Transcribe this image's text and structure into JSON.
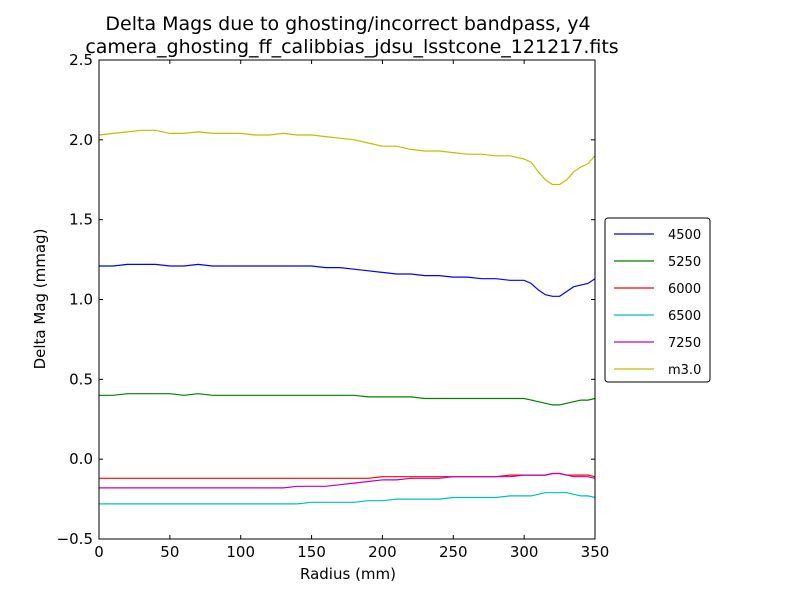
{
  "chart_data": {
    "type": "line",
    "title": "Delta Mags due to ghosting/incorrect bandpass, y4",
    "subtitle": "camera_ghosting_ff_calibbias_jdsu_lsstcone_121217.fits",
    "xlabel": "Radius (mm)",
    "ylabel": "Delta Mag (mmag)",
    "xlim": [
      0,
      350
    ],
    "ylim": [
      -0.5,
      2.5
    ],
    "xticks": [
      0,
      50,
      100,
      150,
      200,
      250,
      300,
      350
    ],
    "yticks": [
      -0.5,
      0.0,
      0.5,
      1.0,
      1.5,
      2.0,
      2.5
    ],
    "xtick_labels": [
      "0",
      "50",
      "100",
      "150",
      "200",
      "250",
      "300",
      "350"
    ],
    "ytick_labels": [
      "−0.5",
      "0.0",
      "0.5",
      "1.0",
      "1.5",
      "2.0",
      "2.5"
    ],
    "grid": false,
    "legend_position": "outside-right",
    "x": [
      0,
      10,
      20,
      30,
      40,
      50,
      60,
      70,
      80,
      90,
      100,
      110,
      120,
      130,
      140,
      150,
      160,
      170,
      180,
      190,
      200,
      210,
      220,
      230,
      240,
      250,
      260,
      270,
      280,
      290,
      300,
      305,
      310,
      315,
      320,
      325,
      330,
      335,
      340,
      345,
      350
    ],
    "series": [
      {
        "name": "4500",
        "color": "#0000ff",
        "values": [
          1.21,
          1.21,
          1.22,
          1.22,
          1.22,
          1.21,
          1.21,
          1.22,
          1.21,
          1.21,
          1.21,
          1.21,
          1.21,
          1.21,
          1.21,
          1.21,
          1.2,
          1.2,
          1.19,
          1.18,
          1.17,
          1.16,
          1.16,
          1.15,
          1.15,
          1.14,
          1.14,
          1.13,
          1.13,
          1.12,
          1.12,
          1.1,
          1.06,
          1.03,
          1.02,
          1.02,
          1.05,
          1.08,
          1.09,
          1.1,
          1.13
        ]
      },
      {
        "name": "5250",
        "color": "#008000",
        "values": [
          0.4,
          0.4,
          0.41,
          0.41,
          0.41,
          0.41,
          0.4,
          0.41,
          0.4,
          0.4,
          0.4,
          0.4,
          0.4,
          0.4,
          0.4,
          0.4,
          0.4,
          0.4,
          0.4,
          0.39,
          0.39,
          0.39,
          0.39,
          0.38,
          0.38,
          0.38,
          0.38,
          0.38,
          0.38,
          0.38,
          0.38,
          0.37,
          0.36,
          0.35,
          0.34,
          0.34,
          0.35,
          0.36,
          0.37,
          0.37,
          0.38
        ]
      },
      {
        "name": "6000",
        "color": "#ff0000",
        "values": [
          -0.12,
          -0.12,
          -0.12,
          -0.12,
          -0.12,
          -0.12,
          -0.12,
          -0.12,
          -0.12,
          -0.12,
          -0.12,
          -0.12,
          -0.12,
          -0.12,
          -0.12,
          -0.12,
          -0.12,
          -0.12,
          -0.12,
          -0.12,
          -0.11,
          -0.11,
          -0.11,
          -0.11,
          -0.11,
          -0.11,
          -0.11,
          -0.11,
          -0.11,
          -0.1,
          -0.1,
          -0.1,
          -0.1,
          -0.1,
          -0.09,
          -0.09,
          -0.1,
          -0.1,
          -0.1,
          -0.1,
          -0.11
        ]
      },
      {
        "name": "6500",
        "color": "#00bfbf",
        "values": [
          -0.28,
          -0.28,
          -0.28,
          -0.28,
          -0.28,
          -0.28,
          -0.28,
          -0.28,
          -0.28,
          -0.28,
          -0.28,
          -0.28,
          -0.28,
          -0.28,
          -0.28,
          -0.27,
          -0.27,
          -0.27,
          -0.27,
          -0.26,
          -0.26,
          -0.25,
          -0.25,
          -0.25,
          -0.25,
          -0.24,
          -0.24,
          -0.24,
          -0.24,
          -0.23,
          -0.23,
          -0.23,
          -0.22,
          -0.21,
          -0.21,
          -0.21,
          -0.21,
          -0.22,
          -0.23,
          -0.23,
          -0.24
        ]
      },
      {
        "name": "7250",
        "color": "#bf00bf",
        "values": [
          -0.18,
          -0.18,
          -0.18,
          -0.18,
          -0.18,
          -0.18,
          -0.18,
          -0.18,
          -0.18,
          -0.18,
          -0.18,
          -0.18,
          -0.18,
          -0.18,
          -0.17,
          -0.17,
          -0.17,
          -0.16,
          -0.15,
          -0.14,
          -0.13,
          -0.13,
          -0.12,
          -0.12,
          -0.12,
          -0.11,
          -0.11,
          -0.11,
          -0.11,
          -0.11,
          -0.1,
          -0.1,
          -0.1,
          -0.1,
          -0.09,
          -0.09,
          -0.1,
          -0.11,
          -0.11,
          -0.11,
          -0.12
        ]
      },
      {
        "name": "m3.0",
        "color": "#bfbf00",
        "values": [
          2.03,
          2.04,
          2.05,
          2.06,
          2.06,
          2.04,
          2.04,
          2.05,
          2.04,
          2.04,
          2.04,
          2.03,
          2.03,
          2.04,
          2.03,
          2.03,
          2.02,
          2.01,
          2.0,
          1.98,
          1.96,
          1.96,
          1.94,
          1.93,
          1.93,
          1.92,
          1.91,
          1.91,
          1.9,
          1.9,
          1.88,
          1.86,
          1.8,
          1.75,
          1.72,
          1.72,
          1.75,
          1.8,
          1.83,
          1.85,
          1.9
        ]
      }
    ]
  }
}
